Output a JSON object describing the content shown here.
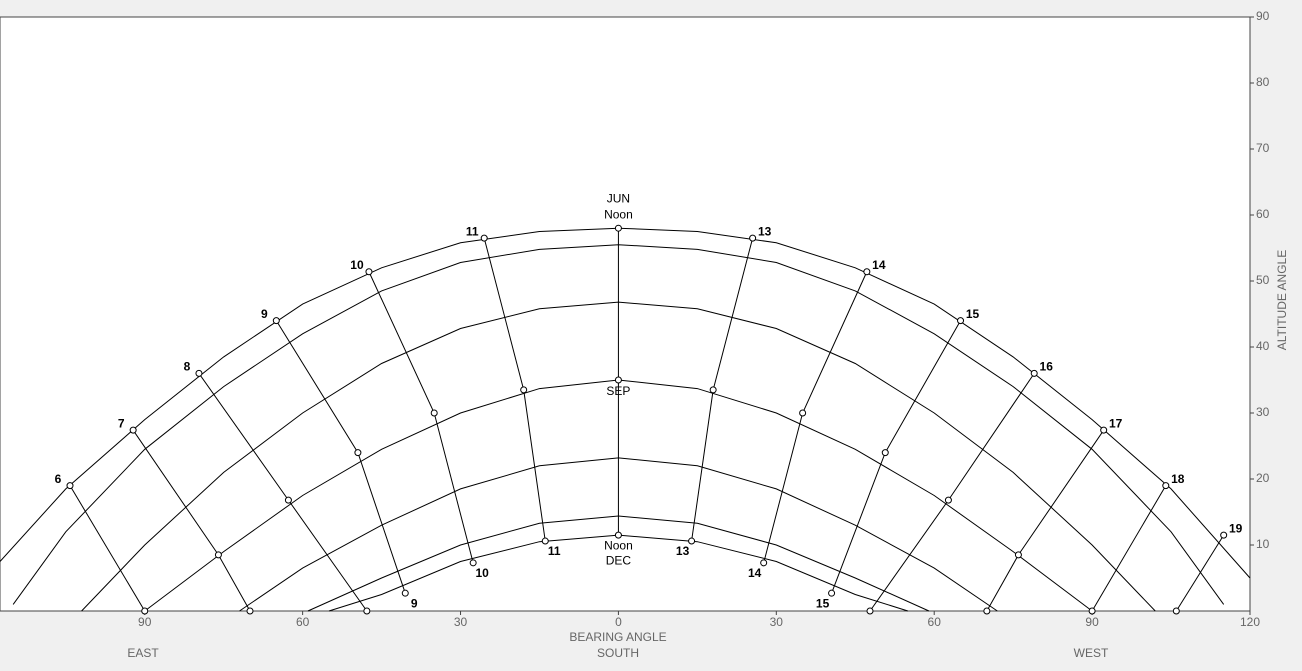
{
  "chart_data": {
    "type": "sunpath",
    "x_label": "BEARING ANGLE",
    "x_center_label": "SOUTH",
    "x_left_label": "EAST",
    "x_right_label": "WEST",
    "y_label": "ALTITUDE ANGLE",
    "noon_label": "Noon",
    "xlim": [
      -117.5,
      120
    ],
    "ylim": [
      0,
      90
    ],
    "xticks": [
      {
        "value": -90,
        "label": "90"
      },
      {
        "value": -60,
        "label": "60"
      },
      {
        "value": -30,
        "label": "30"
      },
      0,
      30,
      60,
      90,
      120
    ],
    "yticks": [
      10,
      20,
      30,
      40,
      50,
      60,
      70,
      80,
      90
    ],
    "arcs": [
      {
        "label": "JUN",
        "x": [
          -117.5,
          -105,
          -90,
          -75,
          -60,
          -45,
          -30,
          -15,
          0,
          15,
          30,
          45,
          60,
          75,
          90,
          105,
          120
        ],
        "y": [
          7.5,
          18.5,
          29,
          38.5,
          46.5,
          52,
          55.8,
          57.5,
          58,
          57.5,
          55.8,
          52,
          46.5,
          38.5,
          29,
          18.5,
          5
        ]
      },
      {
        "x": [
          -115,
          -105,
          -90,
          -75,
          -60,
          -45,
          -30,
          -15,
          0,
          15,
          30,
          45,
          60,
          75,
          90,
          105,
          115
        ],
        "y": [
          1,
          12,
          24.5,
          34,
          42,
          48.5,
          52.8,
          54.8,
          55.5,
          54.8,
          52.8,
          48.5,
          42,
          34,
          24.5,
          12,
          1
        ]
      },
      {
        "x": [
          -102,
          -90,
          -75,
          -60,
          -45,
          -30,
          -15,
          0,
          15,
          30,
          45,
          60,
          75,
          90,
          102
        ],
        "y": [
          0,
          10,
          21,
          30,
          37.5,
          42.8,
          45.8,
          46.8,
          45.8,
          42.8,
          37.5,
          30,
          21,
          10,
          0
        ]
      },
      {
        "label": "SEP",
        "x": [
          -90,
          -75,
          -60,
          -45,
          -30,
          -15,
          0,
          15,
          30,
          45,
          60,
          75,
          90
        ],
        "y": [
          0,
          9,
          17.5,
          24.5,
          30,
          33.7,
          35,
          33.7,
          30,
          24.5,
          17.5,
          9,
          0
        ]
      },
      {
        "x": [
          -72,
          -60,
          -45,
          -30,
          -15,
          0,
          15,
          30,
          45,
          60,
          72
        ],
        "y": [
          0,
          6.5,
          13,
          18.5,
          22,
          23.2,
          22,
          18.5,
          13,
          6.5,
          0
        ]
      },
      {
        "x": [
          -59,
          -45,
          -30,
          -15,
          0,
          15,
          30,
          45,
          59
        ],
        "y": [
          0,
          5,
          10,
          13.3,
          14.4,
          13.3,
          10,
          5,
          0
        ]
      },
      {
        "label": "DEC",
        "x": [
          -55,
          -45,
          -30,
          -15,
          0,
          15,
          30,
          45,
          55
        ],
        "y": [
          0,
          2.5,
          7.5,
          10.5,
          11.5,
          10.5,
          7.5,
          2.5,
          0
        ]
      }
    ],
    "hour_lines": [
      {
        "label": "6",
        "x": [
          -104.2,
          -90
        ],
        "y": [
          19,
          0
        ]
      },
      {
        "label": "7",
        "x": [
          -92.2,
          -76,
          -70
        ],
        "y": [
          27.4,
          8.5,
          0
        ]
      },
      {
        "label": "8",
        "x": [
          -79.7,
          -62.7,
          -47.8
        ],
        "y": [
          36,
          16.8,
          0
        ]
      },
      {
        "label": "9",
        "x": [
          -65,
          -49.5,
          -40.5
        ],
        "y": [
          44,
          24,
          2.7
        ]
      },
      {
        "label": "10",
        "x": [
          -47.4,
          -35,
          -27.6
        ],
        "y": [
          51.4,
          30,
          7.3
        ]
      },
      {
        "label": "11",
        "x": [
          -25.5,
          -18,
          -13.9
        ],
        "y": [
          56.5,
          33.5,
          10.6
        ]
      },
      {
        "label": null,
        "x": [
          0,
          0,
          0
        ],
        "y": [
          58,
          35,
          11.5
        ]
      },
      {
        "label": "13",
        "x": [
          25.5,
          18,
          13.9
        ],
        "y": [
          56.5,
          33.5,
          10.6
        ]
      },
      {
        "label": "14",
        "x": [
          47.2,
          35,
          27.6
        ],
        "y": [
          51.4,
          30,
          7.3
        ]
      },
      {
        "label": "15",
        "x": [
          65,
          50.7,
          40.5
        ],
        "y": [
          44,
          24,
          2.7
        ]
      },
      {
        "label": "16",
        "x": [
          79,
          62.7,
          47.8
        ],
        "y": [
          36,
          16.8,
          0
        ]
      },
      {
        "label": "17",
        "x": [
          92.2,
          76,
          70
        ],
        "y": [
          27.4,
          8.5,
          0
        ]
      },
      {
        "label": "18",
        "x": [
          104,
          90
        ],
        "y": [
          19,
          0
        ]
      },
      {
        "label": "19",
        "x": [
          115,
          106
        ],
        "y": [
          11.5,
          0
        ]
      }
    ]
  }
}
